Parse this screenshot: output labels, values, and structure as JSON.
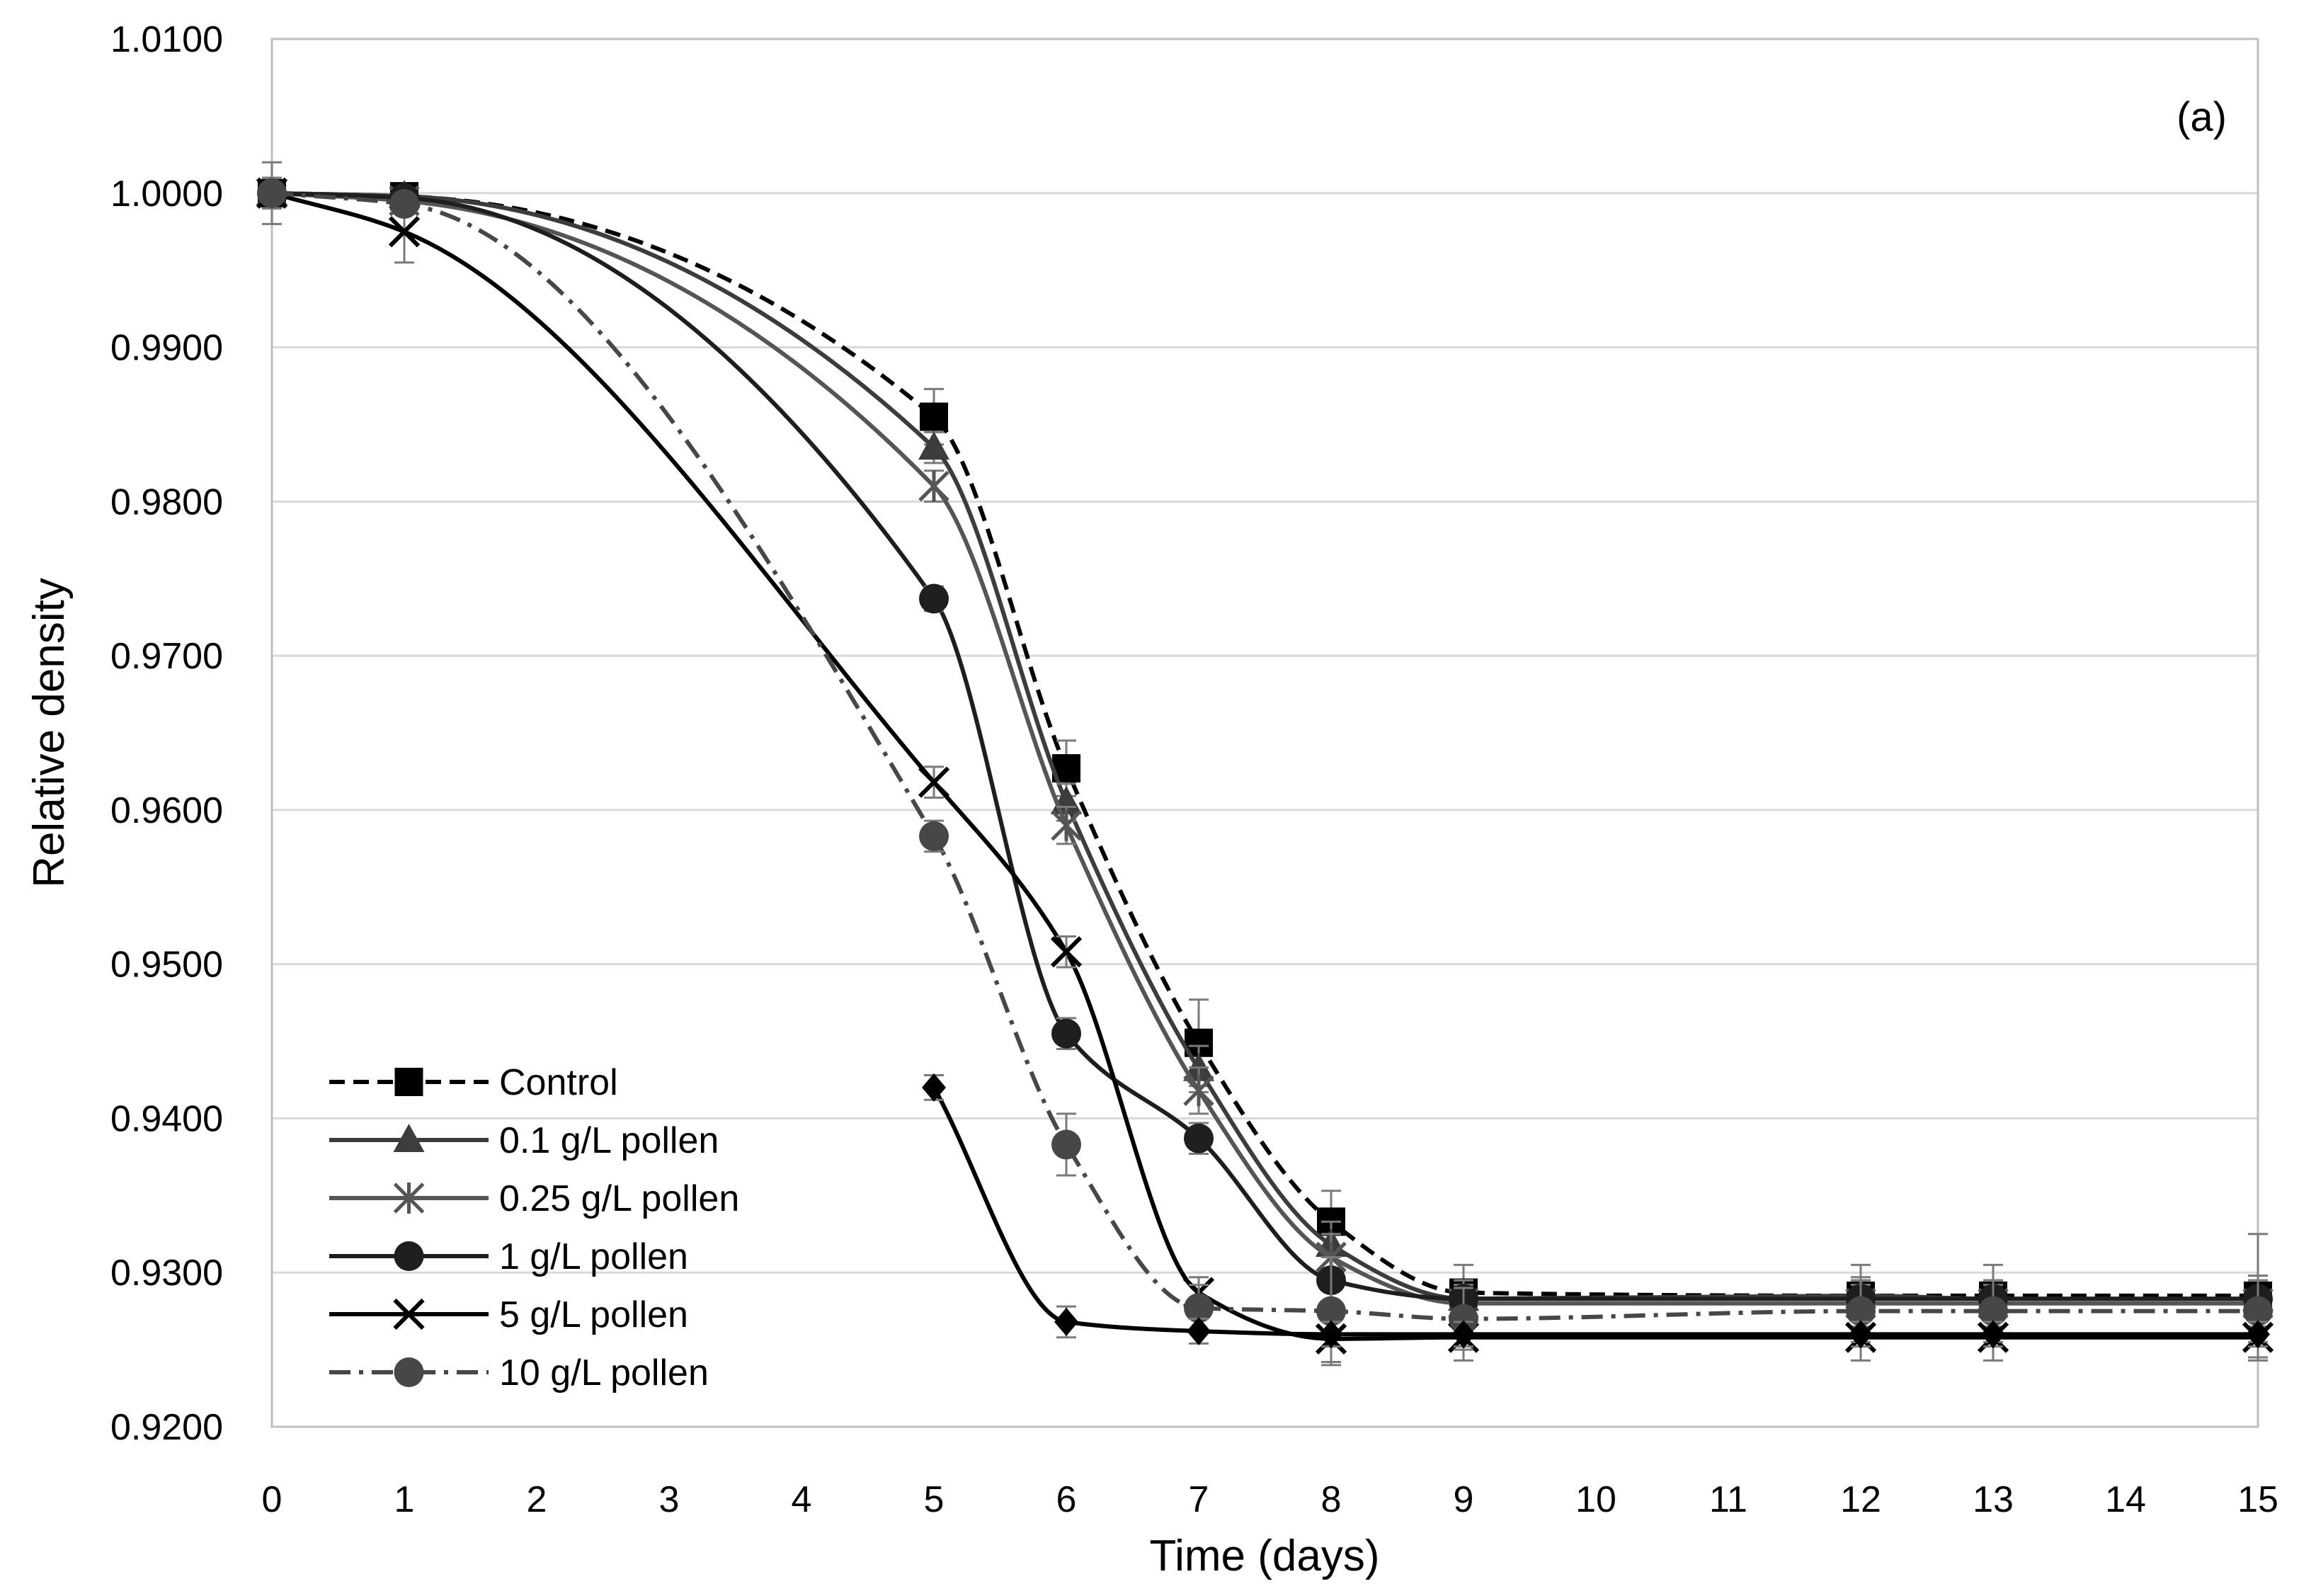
{
  "chart_data": {
    "type": "line",
    "title": "",
    "panel_label": "(a)",
    "xlabel": "Time (days)",
    "ylabel": "Relative density",
    "xlim": [
      0,
      15
    ],
    "ylim": [
      0.92,
      1.01
    ],
    "x_ticks": [
      "0",
      "1",
      "2",
      "3",
      "4",
      "5",
      "6",
      "7",
      "8",
      "9",
      "10",
      "11",
      "12",
      "13",
      "14",
      "15"
    ],
    "y_ticks": [
      "0.9200",
      "0.9300",
      "0.9400",
      "0.9500",
      "0.9600",
      "0.9700",
      "0.9800",
      "0.9900",
      "1.0000",
      "1.0100"
    ],
    "grid": "horizontal",
    "legend_position": "bottom-left",
    "x": [
      0,
      1,
      5,
      6,
      7,
      8,
      9,
      12,
      13,
      15
    ],
    "series": [
      {
        "name": "Control",
        "marker": "square",
        "dash": "dashed",
        "color": "#000000",
        "values": [
          1.0,
          0.9998,
          0.9855,
          0.9627,
          0.9449,
          0.9333,
          0.9287,
          0.9285,
          0.9285,
          0.9285
        ],
        "errors": [
          0.002,
          0.0005,
          0.0018,
          0.0018,
          0.0028,
          0.002,
          0.0018,
          0.002,
          0.002,
          0.004
        ]
      },
      {
        "name": "0.1 g/L pollen",
        "marker": "triangle",
        "dash": "solid",
        "color": "#3c3c3c",
        "values": [
          1.0,
          0.9998,
          0.9835,
          0.9605,
          0.9432,
          0.9318,
          0.9283,
          0.9285,
          0.9283,
          0.9283
        ],
        "errors": [
          0.001,
          0.0005,
          0.001,
          0.0012,
          0.0015,
          0.0015,
          0.0012,
          0.0012,
          0.0012,
          0.0015
        ]
      },
      {
        "name": "0.25 g/L pollen",
        "marker": "asterisk",
        "dash": "solid",
        "color": "#555555",
        "values": [
          1.0,
          0.9995,
          0.981,
          0.959,
          0.9418,
          0.931,
          0.928,
          0.928,
          0.928,
          0.928
        ],
        "errors": [
          0.001,
          0.0005,
          0.001,
          0.0012,
          0.0015,
          0.0015,
          0.0012,
          0.0012,
          0.0012,
          0.0015
        ]
      },
      {
        "name": "1 g/L pollen",
        "marker": "circle",
        "dash": "solid",
        "color": "#1e1e1e",
        "values": [
          1.0,
          0.9997,
          0.9737,
          0.9455,
          0.9387,
          0.9295,
          0.9283,
          0.9283,
          0.9283,
          0.9283
        ],
        "errors": [
          0.001,
          0.0005,
          0.0008,
          0.001,
          0.001,
          0.0015,
          0.0012,
          0.0012,
          0.0012,
          0.0015
        ]
      },
      {
        "name": "5 g/L pollen",
        "marker": "x",
        "dash": "solid",
        "color": "#000000",
        "values": [
          1.0,
          0.9975,
          0.9618,
          0.9508,
          0.9287,
          0.9257,
          0.9258,
          0.9258,
          0.9258,
          0.9258
        ],
        "errors": [
          0.001,
          0.002,
          0.001,
          0.001,
          0.001,
          0.0015,
          0.0015,
          0.0015,
          0.0015,
          0.0015
        ]
      },
      {
        "name": "10 g/L pollen",
        "marker": "circle",
        "dash": "dashdot",
        "color": "#474747",
        "values": [
          1.0,
          0.9993,
          0.9583,
          0.9383,
          0.9277,
          0.9275,
          0.927,
          0.9275,
          0.9275,
          0.9275
        ],
        "errors": [
          0.001,
          0.0005,
          0.001,
          0.002,
          0.0015,
          0.0035,
          0.002,
          0.002,
          0.002,
          0.002
        ]
      }
    ],
    "extra_series": [
      {
        "name": "unlabeled (diamond)",
        "marker": "diamond",
        "dash": "solid",
        "color": "#000000",
        "x": [
          5,
          6,
          7,
          8,
          9,
          12,
          13,
          15
        ],
        "values": [
          0.942,
          0.9268,
          0.9262,
          0.926,
          0.926,
          0.926,
          0.926,
          0.926
        ],
        "errors": [
          0.0008,
          0.001,
          0.0008,
          0.0008,
          0.0008,
          0.0008,
          0.0008,
          0.0008
        ]
      }
    ]
  }
}
